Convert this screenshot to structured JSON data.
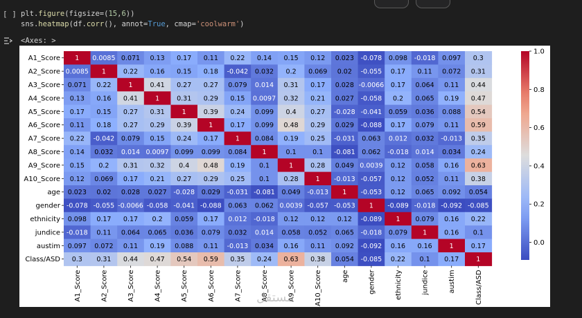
{
  "cell": {
    "prompt": "[ ]",
    "code_lines": [
      [
        {
          "t": "plt.",
          "c": "p"
        },
        {
          "t": "figure",
          "c": "fn"
        },
        {
          "t": "(figsize=(",
          "c": "p"
        },
        {
          "t": "15",
          "c": "num"
        },
        {
          "t": ",",
          "c": "p"
        },
        {
          "t": "6",
          "c": "num"
        },
        {
          "t": "))",
          "c": "p"
        }
      ],
      [
        {
          "t": "sns.",
          "c": "p"
        },
        {
          "t": "heatmap",
          "c": "fn"
        },
        {
          "t": "(df.",
          "c": "p"
        },
        {
          "t": "corr",
          "c": "fn"
        },
        {
          "t": "(), annot=",
          "c": "p"
        },
        {
          "t": "True",
          "c": "kw"
        },
        {
          "t": ", cmap=",
          "c": "p"
        },
        {
          "t": "'coolwarm'",
          "c": "str"
        },
        {
          "t": ")",
          "c": "p"
        }
      ]
    ],
    "output_label": "<Axes: >",
    "output_icon": "output-toggle-icon"
  },
  "chart_data": {
    "type": "heatmap",
    "colormap": "coolwarm",
    "labels": [
      "A1_Score",
      "A2_Score",
      "A3_Score",
      "A4_Score",
      "A5_Score",
      "A6_Score",
      "A7_Score",
      "A8_Score",
      "A9_Score",
      "A10_Score",
      "age",
      "gender",
      "ethnicity",
      "jundice",
      "austim",
      "Class/ASD"
    ],
    "annotations": [
      [
        "1",
        "0.0085",
        "0.071",
        "0.13",
        "0.17",
        "0.11",
        "0.22",
        "0.14",
        "0.15",
        "0.12",
        "0.023",
        "-0.078",
        "0.098",
        "-0.018",
        "0.097",
        "0.3"
      ],
      [
        "0.0085",
        "1",
        "0.22",
        "0.16",
        "0.15",
        "0.18",
        "-0.042",
        "0.032",
        "0.2",
        "0.069",
        "0.02",
        "-0.055",
        "0.17",
        "0.11",
        "0.072",
        "0.31"
      ],
      [
        "0.071",
        "0.22",
        "1",
        "0.41",
        "0.27",
        "0.27",
        "0.079",
        "0.014",
        "0.31",
        "0.17",
        "0.028",
        "-0.0066",
        "0.17",
        "0.064",
        "0.11",
        "0.44"
      ],
      [
        "0.13",
        "0.16",
        "0.41",
        "1",
        "0.31",
        "0.29",
        "0.15",
        "0.0097",
        "0.32",
        "0.21",
        "0.027",
        "-0.058",
        "0.2",
        "0.065",
        "0.19",
        "0.47"
      ],
      [
        "0.17",
        "0.15",
        "0.27",
        "0.31",
        "1",
        "0.39",
        "0.24",
        "0.099",
        "0.4",
        "0.27",
        "-0.028",
        "-0.041",
        "0.059",
        "0.036",
        "0.088",
        "0.54"
      ],
      [
        "0.11",
        "0.18",
        "0.27",
        "0.29",
        "0.39",
        "1",
        "0.17",
        "0.099",
        "0.48",
        "0.29",
        "0.029",
        "-0.088",
        "0.17",
        "0.079",
        "0.11",
        "0.59"
      ],
      [
        "0.22",
        "-0.042",
        "0.079",
        "0.15",
        "0.24",
        "0.17",
        "1",
        "0.084",
        "0.19",
        "0.25",
        "-0.031",
        "0.063",
        "0.012",
        "0.032",
        "-0.013",
        "0.35"
      ],
      [
        "0.14",
        "0.032",
        "0.014",
        "0.0097",
        "0.099",
        "0.099",
        "0.084",
        "1",
        "0.1",
        "0.1",
        "-0.081",
        "0.062",
        "-0.018",
        "0.014",
        "0.034",
        "0.24"
      ],
      [
        "0.15",
        "0.2",
        "0.31",
        "0.32",
        "0.4",
        "0.48",
        "0.19",
        "0.1",
        "1",
        "0.28",
        "0.049",
        "0.0039",
        "0.12",
        "0.058",
        "0.16",
        "0.63"
      ],
      [
        "0.12",
        "0.069",
        "0.17",
        "0.21",
        "0.27",
        "0.29",
        "0.25",
        "0.1",
        "0.28",
        "1",
        "-0.013",
        "-0.057",
        "0.12",
        "0.052",
        "0.11",
        "0.38"
      ],
      [
        "0.023",
        "0.02",
        "0.028",
        "0.027",
        "-0.028",
        "0.029",
        "-0.031",
        "-0.081",
        "0.049",
        "-0.013",
        "1",
        "-0.053",
        "0.12",
        "0.065",
        "0.092",
        "0.054"
      ],
      [
        "-0.078",
        "-0.055",
        "-0.0066",
        "-0.058",
        "-0.041",
        "-0.088",
        "0.063",
        "0.062",
        "0.0039",
        "-0.057",
        "-0.053",
        "1",
        "-0.089",
        "-0.018",
        "-0.092",
        "-0.085"
      ],
      [
        "0.098",
        "0.17",
        "0.17",
        "0.2",
        "0.059",
        "0.17",
        "0.012",
        "-0.018",
        "0.12",
        "0.12",
        "0.12",
        "-0.089",
        "1",
        "0.079",
        "0.16",
        "0.22"
      ],
      [
        "-0.018",
        "0.11",
        "0.064",
        "0.065",
        "0.036",
        "0.079",
        "0.032",
        "0.014",
        "0.058",
        "0.052",
        "0.065",
        "-0.018",
        "0.079",
        "1",
        "0.16",
        "0.1"
      ],
      [
        "0.097",
        "0.072",
        "0.11",
        "0.19",
        "0.088",
        "0.11",
        "-0.013",
        "0.034",
        "0.16",
        "0.11",
        "0.092",
        "-0.092",
        "0.16",
        "0.16",
        "1",
        "0.17"
      ],
      [
        "0.3",
        "0.31",
        "0.44",
        "0.47",
        "0.54",
        "0.59",
        "0.35",
        "0.24",
        "0.63",
        "0.38",
        "0.054",
        "-0.085",
        "0.22",
        "0.1",
        "0.17",
        "1"
      ]
    ],
    "colorbar": {
      "vmin": -0.092,
      "vmax": 1.0,
      "ticks": [
        "0.0",
        "0.2",
        "0.4",
        "0.6",
        "0.8",
        "1.0"
      ]
    }
  },
  "watermark": "مستقل"
}
